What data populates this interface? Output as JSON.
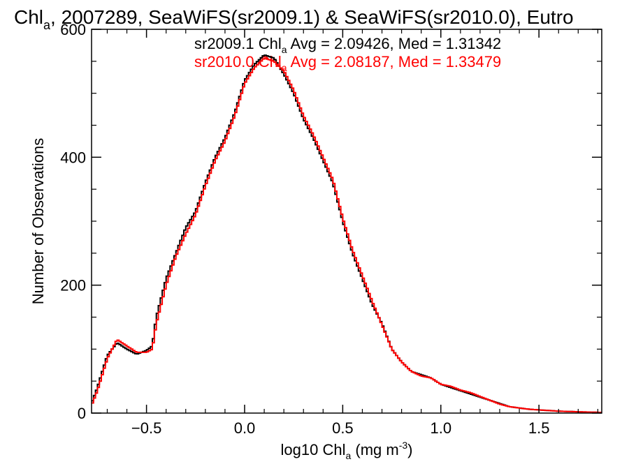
{
  "chart_data": {
    "type": "line",
    "title": {
      "pre": "Chl",
      "sub": "a",
      "post": ", 2007289, SeaWiFS(sr2009.1) & SeaWiFS(sr2010.0), Eutro"
    },
    "xlabel": {
      "pre": "log10 Chl",
      "sub": "a",
      "mid": " (mg m",
      "sup": "-3",
      "post": ")"
    },
    "ylabel": "Number of Observations",
    "xlim": [
      -0.78,
      1.82
    ],
    "ylim": [
      0,
      600
    ],
    "x_ticks": [
      {
        "value": -0.5,
        "label": "−0.5"
      },
      {
        "value": 0.0,
        "label": "0.0"
      },
      {
        "value": 0.5,
        "label": "0.5"
      },
      {
        "value": 1.0,
        "label": "1.0"
      },
      {
        "value": 1.5,
        "label": "1.5"
      }
    ],
    "y_ticks": [
      {
        "value": 0,
        "label": "0"
      },
      {
        "value": 200,
        "label": "200"
      },
      {
        "value": 400,
        "label": "400"
      },
      {
        "value": 600,
        "label": "600"
      }
    ],
    "grid": false,
    "step": "histogram",
    "bin_width": 0.01,
    "series": [
      {
        "name": {
          "pre": "sr2009.1 Chl",
          "sub": "a",
          "post": " Avg = 2.09426, Med = 1.31342"
        },
        "color": "#000000",
        "x": [
          -0.78,
          -0.75,
          -0.7,
          -0.65,
          -0.6,
          -0.55,
          -0.5,
          -0.47,
          -0.45,
          -0.4,
          -0.35,
          -0.3,
          -0.25,
          -0.2,
          -0.15,
          -0.1,
          -0.05,
          0.0,
          0.05,
          0.1,
          0.15,
          0.2,
          0.25,
          0.3,
          0.35,
          0.4,
          0.45,
          0.5,
          0.55,
          0.6,
          0.65,
          0.7,
          0.75,
          0.8,
          0.85,
          0.9,
          0.95,
          1.0,
          1.05,
          1.1,
          1.15,
          1.2,
          1.25,
          1.3,
          1.35,
          1.4,
          1.45,
          1.5,
          1.6,
          1.7,
          1.82
        ],
        "y": [
          15,
          40,
          90,
          110,
          100,
          92,
          98,
          105,
          150,
          210,
          250,
          290,
          315,
          360,
          400,
          430,
          470,
          520,
          545,
          560,
          555,
          530,
          500,
          460,
          430,
          395,
          360,
          300,
          250,
          210,
          170,
          140,
          100,
          80,
          65,
          60,
          55,
          45,
          40,
          35,
          30,
          25,
          20,
          15,
          10,
          8,
          6,
          5,
          3,
          2,
          1
        ]
      },
      {
        "name": {
          "pre": "sr2010.0 Chl",
          "sub": "a",
          "post": " Avg = 2.08187, Med = 1.33479"
        },
        "color": "#ff0000",
        "x": [
          -0.78,
          -0.75,
          -0.7,
          -0.65,
          -0.6,
          -0.55,
          -0.5,
          -0.47,
          -0.45,
          -0.4,
          -0.35,
          -0.3,
          -0.25,
          -0.2,
          -0.15,
          -0.1,
          -0.05,
          0.0,
          0.05,
          0.1,
          0.15,
          0.2,
          0.25,
          0.3,
          0.35,
          0.4,
          0.45,
          0.5,
          0.55,
          0.6,
          0.65,
          0.7,
          0.75,
          0.8,
          0.85,
          0.9,
          0.95,
          1.0,
          1.05,
          1.1,
          1.15,
          1.2,
          1.25,
          1.3,
          1.35,
          1.4,
          1.45,
          1.5,
          1.6,
          1.7,
          1.82
        ],
        "y": [
          12,
          35,
          85,
          115,
          105,
          95,
          95,
          100,
          140,
          200,
          245,
          280,
          310,
          355,
          395,
          425,
          465,
          515,
          540,
          555,
          550,
          535,
          505,
          465,
          435,
          400,
          365,
          305,
          255,
          215,
          175,
          138,
          100,
          80,
          65,
          58,
          55,
          45,
          42,
          36,
          32,
          26,
          20,
          14,
          10,
          8,
          6,
          5,
          3,
          2,
          1
        ]
      }
    ]
  }
}
